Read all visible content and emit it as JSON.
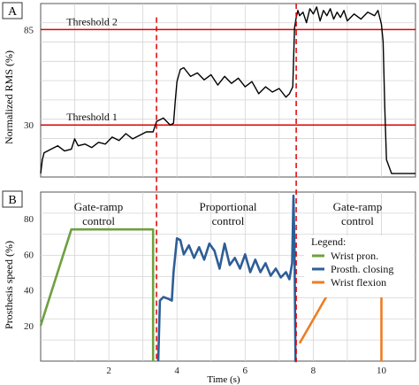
{
  "colors": {
    "threshold": "#e00000",
    "emg": "#000000",
    "wrist_pron": "#6fa040",
    "prosth_closing": "#2e5d96",
    "wrist_flexion": "#ee7d22",
    "grid": "#d4d4d4",
    "panel_border": "#555555"
  },
  "chart_data": [
    {
      "type": "line",
      "panel_label": "A",
      "ylabel": "Normalized RMS (%)",
      "xlim": [
        0,
        11
      ],
      "ylim": [
        0,
        100
      ],
      "yticks": [
        "30",
        "85"
      ],
      "ytick_values": [
        30,
        85
      ],
      "grid": true,
      "thresholds": [
        {
          "label": "Threshold 1",
          "value": 30
        },
        {
          "label": "Threshold 2",
          "value": 85
        }
      ],
      "markers_x": [
        3.4,
        7.5
      ],
      "series": [
        {
          "x": [
            0,
            0.05,
            0.1,
            0.3,
            0.5,
            0.7,
            0.9,
            1.0,
            1.1,
            1.3,
            1.5,
            1.7,
            1.9,
            2.1,
            2.3,
            2.5,
            2.7,
            2.9,
            3.1,
            3.3,
            3.4,
            3.6,
            3.8,
            3.9,
            3.95,
            4.0,
            4.1,
            4.2,
            4.4,
            4.6,
            4.8,
            5.0,
            5.2,
            5.4,
            5.6,
            5.8,
            6.0,
            6.2,
            6.4,
            6.6,
            6.8,
            7.0,
            7.2,
            7.3,
            7.4,
            7.45,
            7.5,
            7.55,
            7.6,
            7.7,
            7.8,
            7.9,
            8.0,
            8.1,
            8.2,
            8.3,
            8.4,
            8.5,
            8.6,
            8.7,
            8.8,
            8.9,
            9.0,
            9.2,
            9.4,
            9.6,
            9.8,
            9.9,
            10.0,
            10.05,
            10.1,
            10.15,
            10.3,
            10.6,
            11.0
          ],
          "values": [
            2,
            10,
            14,
            16,
            18,
            15,
            16,
            22,
            18,
            19,
            17,
            20,
            19,
            23,
            21,
            25,
            22,
            24,
            26,
            26,
            32,
            34,
            30,
            31,
            44,
            55,
            62,
            63,
            58,
            60,
            56,
            59,
            53,
            58,
            54,
            57,
            52,
            55,
            48,
            52,
            49,
            51,
            46,
            48,
            52,
            86,
            92,
            96,
            93,
            95,
            89,
            97,
            94,
            98,
            90,
            96,
            93,
            97,
            91,
            95,
            92,
            96,
            90,
            94,
            91,
            95,
            93,
            96,
            88,
            78,
            40,
            10,
            2,
            2,
            2
          ]
        }
      ]
    },
    {
      "type": "line",
      "panel_label": "B",
      "ylabel": "Prosthesis speed (%)",
      "xlabel": "Time (s)",
      "xlim": [
        0,
        11
      ],
      "ylim": [
        0,
        95
      ],
      "xticks": [
        "2",
        "4",
        "6",
        "8",
        "10"
      ],
      "xtick_values": [
        2,
        4,
        6,
        8,
        10
      ],
      "yticks": [
        "20",
        "40",
        "60",
        "80"
      ],
      "ytick_values": [
        20,
        40,
        60,
        80
      ],
      "grid": true,
      "markers_x": [
        3.4,
        7.5
      ],
      "region_labels": [
        {
          "line1": "Gate-ramp",
          "line2": "control",
          "x": 1.7
        },
        {
          "line1": "Proportional",
          "line2": "control",
          "x": 5.5
        },
        {
          "line1": "Gate-ramp",
          "line2": "control",
          "x": 9.3
        }
      ],
      "legend": {
        "title": "Legend:",
        "position": "right",
        "entries": [
          "Wrist pron.",
          "Prosth. closing",
          "Wrist flexion"
        ]
      },
      "series": [
        {
          "name": "Wrist pron.",
          "color": "#6fa040",
          "x": [
            0,
            0.9,
            3.3,
            3.3
          ],
          "values": [
            20,
            74,
            74,
            0
          ]
        },
        {
          "name": "Prosth. closing",
          "color": "#2e5d96",
          "x": [
            3.45,
            3.5,
            3.6,
            3.75,
            3.85,
            3.9,
            4.0,
            4.1,
            4.2,
            4.35,
            4.5,
            4.65,
            4.8,
            4.95,
            5.1,
            5.25,
            5.4,
            5.55,
            5.7,
            5.85,
            6.0,
            6.15,
            6.3,
            6.45,
            6.6,
            6.75,
            6.9,
            7.05,
            7.2,
            7.3,
            7.38,
            7.42,
            7.45,
            7.48,
            7.52
          ],
          "values": [
            0,
            34,
            36,
            35,
            34,
            50,
            69,
            68,
            60,
            65,
            58,
            64,
            57,
            66,
            62,
            52,
            66,
            54,
            58,
            52,
            60,
            50,
            57,
            50,
            55,
            48,
            52,
            47,
            50,
            46,
            55,
            93,
            62,
            0,
            0
          ]
        },
        {
          "name": "Wrist flexion",
          "color": "#ee7d22",
          "x": [
            7.6,
            8.5,
            10.0,
            10.0
          ],
          "values": [
            10,
            40,
            40,
            0
          ]
        }
      ]
    }
  ]
}
